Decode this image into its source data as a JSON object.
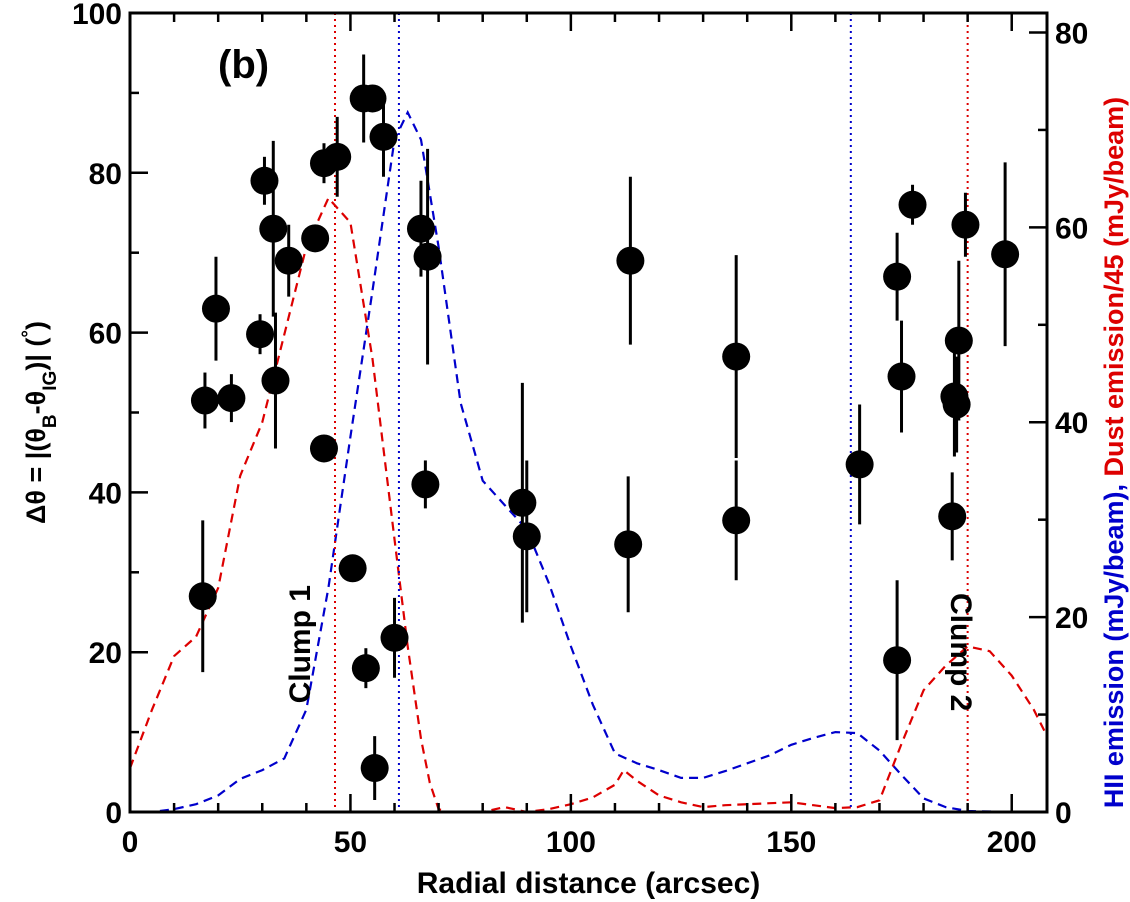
{
  "chart_data": {
    "type": "scatter",
    "panel_label": "(b)",
    "xlabel": "Radial distance (arcsec)",
    "ylabel": "Δθ = |(θB-θIG)| (°)",
    "ylabel_parts": {
      "prefix": "Δθ = |(θ",
      "sub1": "B",
      "mid": "-θ",
      "sub2": "IG",
      "suffix": ")| (",
      "deg": "°",
      "close": ")"
    },
    "y2label_parts": [
      {
        "text": "HII emission (mJy/beam), ",
        "color": "#0000cc"
      },
      {
        "text": "Dust emission/45 (mJy/beam)",
        "color": "#dd0000"
      }
    ],
    "xlim": [
      0,
      208
    ],
    "ylim": [
      0,
      100
    ],
    "y2lim": [
      0,
      82
    ],
    "xticks": [
      0,
      50,
      100,
      150,
      200
    ],
    "yticks": [
      0,
      20,
      40,
      60,
      80,
      100
    ],
    "y2ticks": [
      0,
      20,
      40,
      60,
      80
    ],
    "colors": {
      "points": "#000000",
      "hii": "#0000cc",
      "dust": "#dd0000"
    },
    "points": [
      {
        "x": 16.5,
        "y": 27.0,
        "err": 9.5
      },
      {
        "x": 17.0,
        "y": 51.5,
        "err": 3.5
      },
      {
        "x": 19.5,
        "y": 63.0,
        "err": 6.5
      },
      {
        "x": 23.0,
        "y": 51.8,
        "err": 3.0
      },
      {
        "x": 29.5,
        "y": 59.8,
        "err": 2.5
      },
      {
        "x": 30.5,
        "y": 79.0,
        "err": 3.0
      },
      {
        "x": 32.5,
        "y": 73.0,
        "err": 11.0
      },
      {
        "x": 33.0,
        "y": 54.0,
        "err": 8.5
      },
      {
        "x": 36.0,
        "y": 69.0,
        "err": 4.5
      },
      {
        "x": 42.0,
        "y": 71.8,
        "err": 0.5
      },
      {
        "x": 44.0,
        "y": 45.5,
        "err": 0.5
      },
      {
        "x": 44.0,
        "y": 81.2,
        "err": 2.5
      },
      {
        "x": 47.0,
        "y": 82.0,
        "err": 5.0
      },
      {
        "x": 50.5,
        "y": 30.5,
        "err": 0.5
      },
      {
        "x": 53.0,
        "y": 89.3,
        "err": 5.5
      },
      {
        "x": 53.5,
        "y": 18.0,
        "err": 2.5
      },
      {
        "x": 55.0,
        "y": 89.3,
        "err": 0.5
      },
      {
        "x": 55.5,
        "y": 5.5,
        "err": 4.0
      },
      {
        "x": 57.5,
        "y": 84.5,
        "err": 5.0
      },
      {
        "x": 60.0,
        "y": 21.8,
        "err": 5.0
      },
      {
        "x": 66.0,
        "y": 73.0,
        "err": 6.0
      },
      {
        "x": 67.0,
        "y": 41.0,
        "err": 3.0
      },
      {
        "x": 67.5,
        "y": 69.5,
        "err": 13.5
      },
      {
        "x": 89.0,
        "y": 38.7,
        "err": 15.0
      },
      {
        "x": 90.0,
        "y": 34.5,
        "err": 9.5
      },
      {
        "x": 113.0,
        "y": 33.5,
        "err": 8.5
      },
      {
        "x": 113.5,
        "y": 69.0,
        "err": 10.5
      },
      {
        "x": 137.5,
        "y": 57.0,
        "err": 12.7
      },
      {
        "x": 137.5,
        "y": 36.5,
        "err": 7.5
      },
      {
        "x": 165.5,
        "y": 43.5,
        "err": 7.5
      },
      {
        "x": 174.0,
        "y": 19.0,
        "err": 10.0
      },
      {
        "x": 174.0,
        "y": 67.0,
        "err": 5.5
      },
      {
        "x": 175.0,
        "y": 54.5,
        "err": 7.0
      },
      {
        "x": 177.5,
        "y": 76.0,
        "err": 2.5
      },
      {
        "x": 186.5,
        "y": 37.0,
        "err": 5.5
      },
      {
        "x": 187.0,
        "y": 52.0,
        "err": 7.5
      },
      {
        "x": 187.5,
        "y": 51.0,
        "err": 6.0
      },
      {
        "x": 188.0,
        "y": 59.0,
        "err": 10.0
      },
      {
        "x": 189.5,
        "y": 73.5,
        "err": 4.0
      },
      {
        "x": 198.5,
        "y": 69.8,
        "err": 11.5
      }
    ],
    "hii_curve": [
      [
        0,
        0
      ],
      [
        5,
        0
      ],
      [
        10,
        0.3
      ],
      [
        15,
        0.8
      ],
      [
        20,
        1.7
      ],
      [
        25,
        3.4
      ],
      [
        30,
        4.3
      ],
      [
        35,
        5.5
      ],
      [
        40,
        10.5
      ],
      [
        45,
        23.0
      ],
      [
        50,
        38.5
      ],
      [
        55,
        53.5
      ],
      [
        60,
        69.0
      ],
      [
        63,
        71.8
      ],
      [
        66,
        69.0
      ],
      [
        70,
        58.0
      ],
      [
        75,
        42.0
      ],
      [
        80,
        34.0
      ],
      [
        85,
        31.5
      ],
      [
        90,
        29.0
      ],
      [
        95,
        23.5
      ],
      [
        100,
        17.0
      ],
      [
        105,
        11.0
      ],
      [
        110,
        6.0
      ],
      [
        115,
        5.0
      ],
      [
        120,
        4.3
      ],
      [
        125,
        3.5
      ],
      [
        130,
        3.5
      ],
      [
        135,
        4.2
      ],
      [
        140,
        5.0
      ],
      [
        145,
        5.8
      ],
      [
        150,
        6.9
      ],
      [
        155,
        7.6
      ],
      [
        160,
        8.2
      ],
      [
        165,
        8.1
      ],
      [
        170,
        6.3
      ],
      [
        175,
        3.8
      ],
      [
        180,
        1.4
      ],
      [
        185,
        0.5
      ],
      [
        190,
        0.1
      ],
      [
        200,
        0
      ],
      [
        208,
        0
      ]
    ],
    "dust_curve": [
      [
        0,
        4.5
      ],
      [
        5,
        10.5
      ],
      [
        10,
        16.0
      ],
      [
        15,
        18.0
      ],
      [
        20,
        23.0
      ],
      [
        25,
        34.5
      ],
      [
        30,
        40.0
      ],
      [
        35,
        49.0
      ],
      [
        40,
        58.0
      ],
      [
        45,
        63.0
      ],
      [
        50,
        60.5
      ],
      [
        55,
        46.5
      ],
      [
        60,
        28.0
      ],
      [
        63,
        17.0
      ],
      [
        66,
        7.5
      ],
      [
        68,
        3.0
      ],
      [
        70,
        0.3
      ],
      [
        72,
        0
      ],
      [
        80,
        0
      ],
      [
        85,
        0.5
      ],
      [
        90,
        0
      ],
      [
        95,
        0.3
      ],
      [
        100,
        0.8
      ],
      [
        105,
        1.5
      ],
      [
        110,
        2.8
      ],
      [
        112,
        4.3
      ],
      [
        115,
        3.2
      ],
      [
        120,
        1.7
      ],
      [
        125,
        1.0
      ],
      [
        130,
        0.5
      ],
      [
        135,
        0.7
      ],
      [
        140,
        0.8
      ],
      [
        150,
        1.0
      ],
      [
        155,
        0.7
      ],
      [
        160,
        0.4
      ],
      [
        165,
        0.5
      ],
      [
        170,
        1.2
      ],
      [
        175,
        7.0
      ],
      [
        180,
        12.5
      ],
      [
        185,
        15.0
      ],
      [
        190,
        17.0
      ],
      [
        195,
        16.5
      ],
      [
        200,
        14.0
      ],
      [
        205,
        10.5
      ],
      [
        208,
        7.8
      ]
    ],
    "vlines": [
      {
        "x": 46.5,
        "color": "#dd0000"
      },
      {
        "x": 61.0,
        "color": "#0000cc"
      },
      {
        "x": 163.5,
        "color": "#0000cc"
      },
      {
        "x": 190.0,
        "color": "#dd0000"
      }
    ],
    "annotations": [
      {
        "text": "Clump 1",
        "x": 43.5,
        "y": 21.0,
        "rotate": -90
      },
      {
        "text": "Clump 2",
        "x": 189.0,
        "y": 20.0,
        "rotate": 90
      }
    ]
  }
}
